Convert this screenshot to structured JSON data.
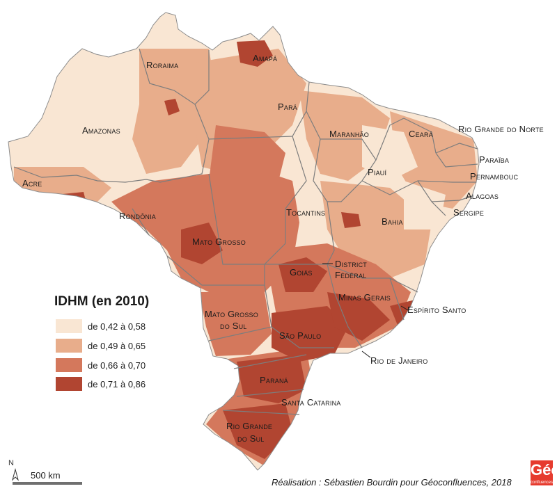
{
  "legend": {
    "title": "IDHM (en 2010)",
    "classes": [
      {
        "label": "de 0,42 à 0,58",
        "color": "#f9e6d3"
      },
      {
        "label": "de 0,49 à 0,65",
        "color": "#e8ad8b"
      },
      {
        "label": "de 0,66 à 0,70",
        "color": "#d4785c"
      },
      {
        "label": "de 0,71 à 0,86",
        "color": "#b14531"
      }
    ]
  },
  "states": {
    "roraima": "Roraima",
    "amapa": "Amapá",
    "amazonas": "Amazonas",
    "para": "Pará",
    "maranhao": "Maranhão",
    "ceara": "Ceará",
    "rio_grande_do_norte": "Rio Grande do Norte",
    "paraiba": "Paraïba",
    "pernambouc": "Pernambouc",
    "alagoas": "Alagoas",
    "sergipe": "Sergipe",
    "piaui": "Piauí",
    "acre": "Acre",
    "rondonia": "Rondônia",
    "tocantins": "Tocantins",
    "bahia": "Bahia",
    "mato_grosso": "Mato Grosso",
    "goias": "Goiás",
    "district_federal_1": "District",
    "district_federal_2": "Fédéral",
    "minas_gerais": "Minas Gerais",
    "espirito_santo": "Espírito Santo",
    "mato_grosso_do_sul_1": "Mato Grosso",
    "mato_grosso_do_sul_2": "do Sul",
    "sao_paulo": "São Paulo",
    "rio_de_janeiro": "Rio de Janeiro",
    "parana": "Paraná",
    "santa_catarina": "Santa Catarina",
    "rio_grande_do_sul_1": "Rio Grande",
    "rio_grande_do_sul_2": "do Sul"
  },
  "north_label": "N",
  "scale_label": "500 km",
  "credit": "Réalisation : Sébastien Bourdin pour Géoconfluences, 2018",
  "logo": {
    "main": "Géo",
    "sub": "confluences"
  }
}
